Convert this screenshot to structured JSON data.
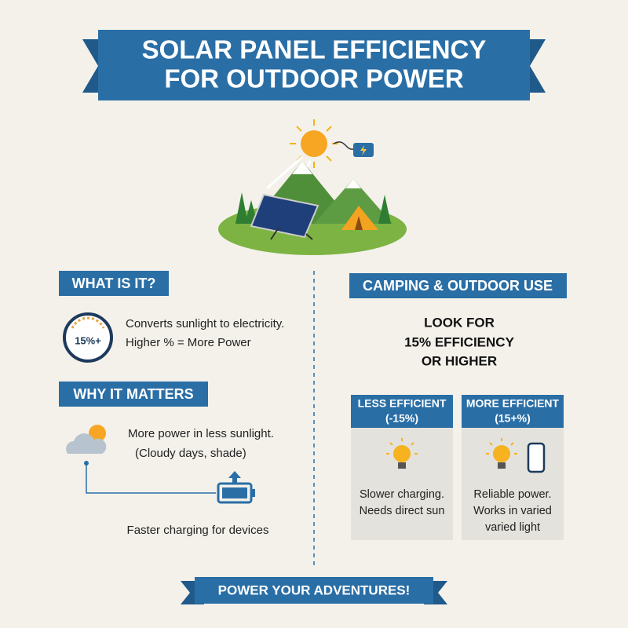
{
  "header": {
    "title_lines": [
      "SOLAR PANEL EFFICIENCY",
      "FOR OUTDOOR POWER"
    ]
  },
  "what_is_it": {
    "heading": "WHAT IS IT?",
    "gauge_label": "15%+",
    "text_lines": [
      "Converts sunlight to electricity.",
      "Higher % = More Power"
    ]
  },
  "why_it_matters": {
    "heading": "WHY IT MATTERS",
    "sunlight_lines": [
      "More power in less sunlight.",
      "(Cloudy days, shade)"
    ],
    "charging_text": "Faster charging for devices"
  },
  "camping": {
    "heading": "CAMPING & OUTDOOR USE",
    "look_for_lines": [
      "LOOK FOR",
      "15% EFFICIENCY",
      "OR HIGHER"
    ],
    "comparison": [
      {
        "title_lines": [
          "LESS EFFICIENT",
          "(-15%)"
        ],
        "text_lines": [
          "Slower charging.",
          "Needs direct sun"
        ]
      },
      {
        "title_lines": [
          "MORE EFFICIENT",
          "(15+%)"
        ],
        "text_lines": [
          "Reliable power.",
          "Works in varied",
          "varied light"
        ]
      }
    ]
  },
  "footer": {
    "banner": "POWER YOUR ADVENTURES!"
  }
}
